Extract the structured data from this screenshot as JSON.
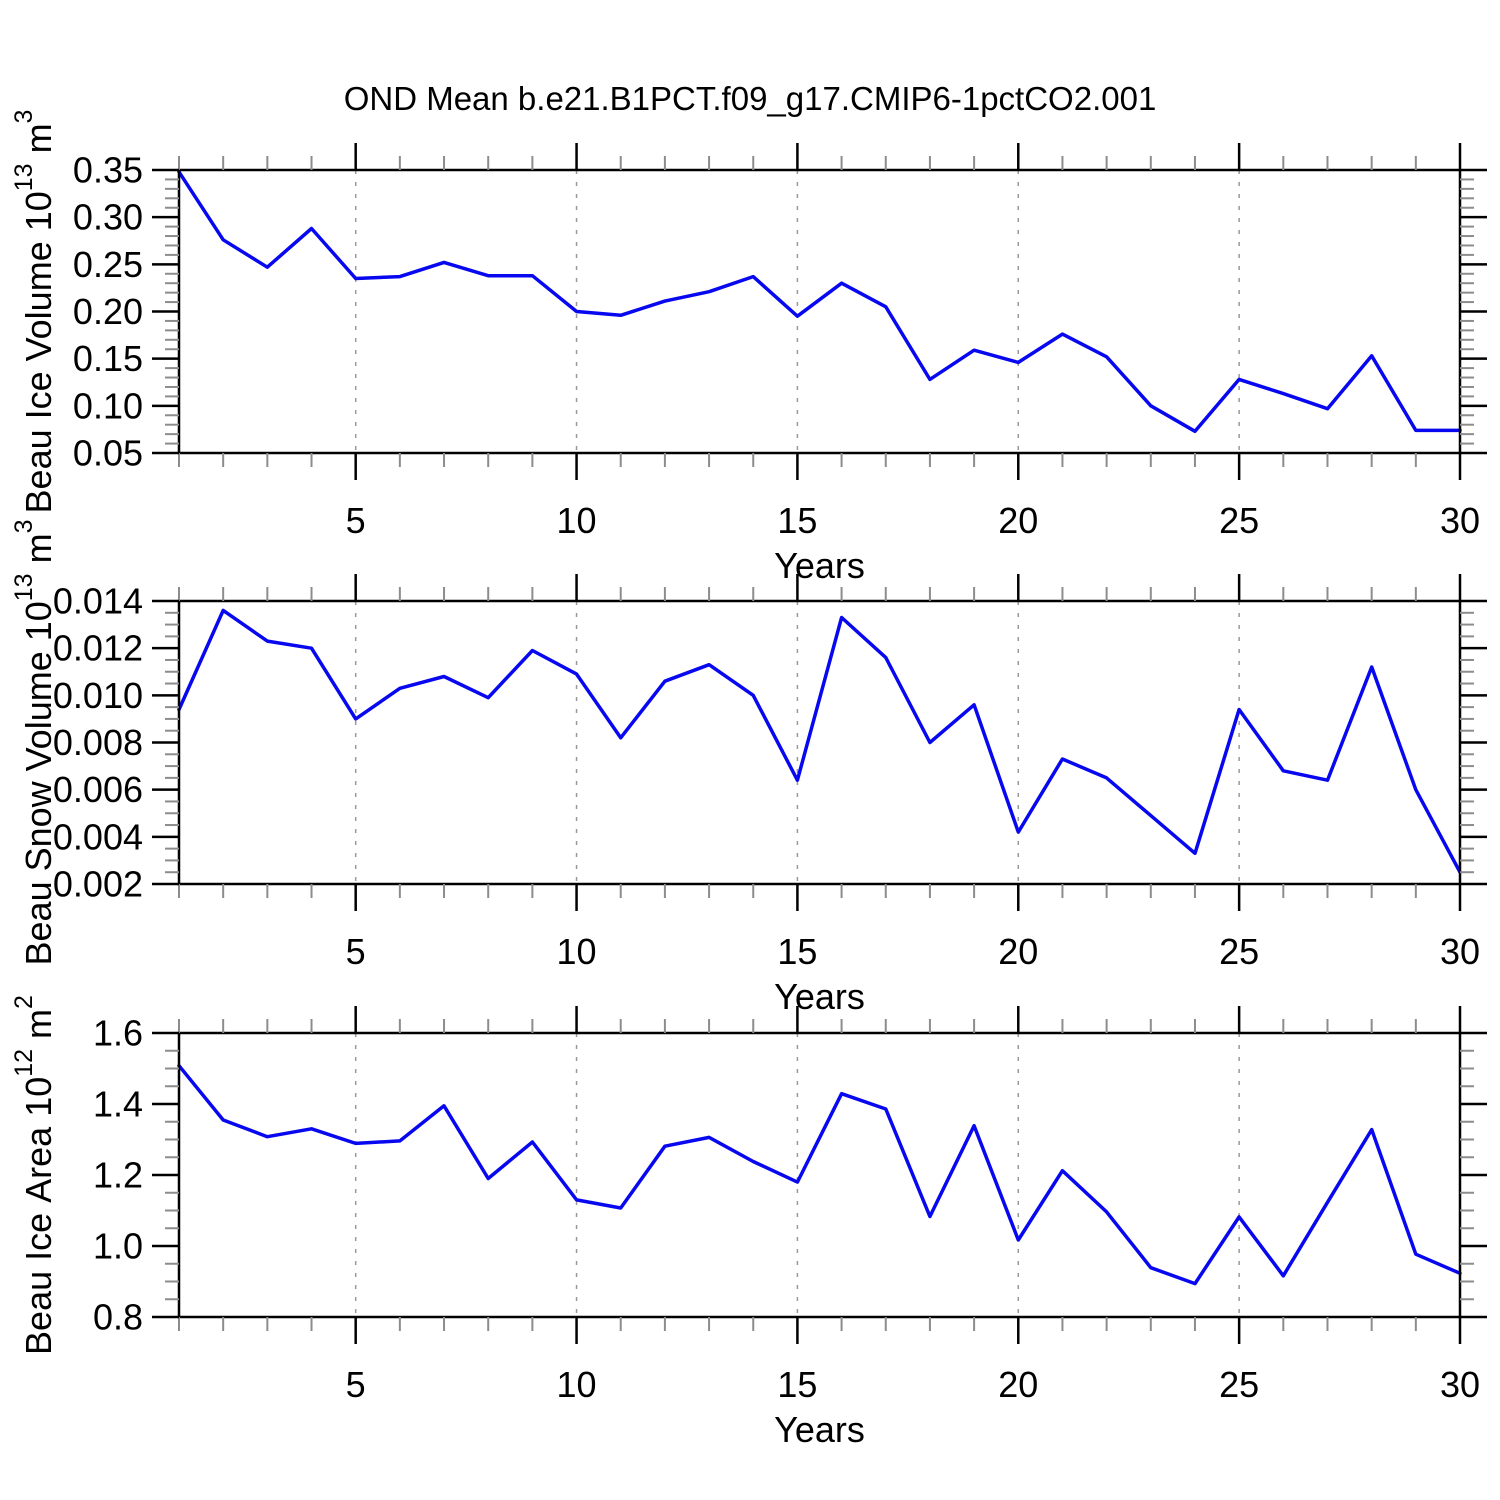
{
  "title": "OND Mean b.e21.B1PCT.f09_g17.CMIP6-1pctCO2.001",
  "line_color": "#0808f0",
  "grid_color": "#999999",
  "minor_tick_color": "#8c8c8c",
  "axis_color": "#000000",
  "x_axis": {
    "label": "Years",
    "range": [
      1,
      30
    ],
    "tick_labels": [
      "5",
      "10",
      "15",
      "20",
      "25",
      "30"
    ],
    "ticks": [
      5,
      10,
      15,
      20,
      25,
      30
    ],
    "gridlines": [
      5,
      10,
      15,
      20,
      25
    ]
  },
  "chart_data": [
    {
      "type": "line",
      "id": "ice-volume",
      "ylabel": "Beau Ice Volume 10^13 m^3",
      "ylabel_parts": [
        {
          "text": "Beau Ice Volume 10"
        },
        {
          "text": "13",
          "sup": true
        },
        {
          "text": " m"
        },
        {
          "text": "3",
          "sup": true
        }
      ],
      "ylim": [
        0.05,
        0.35
      ],
      "yticks": [
        0.05,
        0.1,
        0.15,
        0.2,
        0.25,
        0.3,
        0.35
      ],
      "ytick_labels": [
        "0.05",
        "0.10",
        "0.15",
        "0.20",
        "0.25",
        "0.30",
        "0.35"
      ],
      "minor_step": 0.01,
      "xlabel": "Years",
      "x": [
        1,
        2,
        3,
        4,
        5,
        6,
        7,
        8,
        9,
        10,
        11,
        12,
        13,
        14,
        15,
        16,
        17,
        18,
        19,
        20,
        21,
        22,
        23,
        24,
        25,
        26,
        27,
        28,
        29,
        30
      ],
      "values": [
        0.348,
        0.276,
        0.247,
        0.288,
        0.235,
        0.237,
        0.252,
        0.238,
        0.238,
        0.2,
        0.196,
        0.211,
        0.221,
        0.237,
        0.195,
        0.23,
        0.205,
        0.128,
        0.159,
        0.146,
        0.176,
        0.152,
        0.1,
        0.073,
        0.128,
        0.113,
        0.097,
        0.153,
        0.074,
        0.074
      ]
    },
    {
      "type": "line",
      "id": "snow-volume",
      "ylabel": "Beau Snow Volume 10^13 m^3",
      "ylabel_parts": [
        {
          "text": "Beau Snow Volume 10"
        },
        {
          "text": "13",
          "sup": true
        },
        {
          "text": " m"
        },
        {
          "text": "3",
          "sup": true
        }
      ],
      "ylim": [
        0.002,
        0.014
      ],
      "yticks": [
        0.002,
        0.004,
        0.006,
        0.008,
        0.01,
        0.012,
        0.014
      ],
      "ytick_labels": [
        "0.002",
        "0.004",
        "0.006",
        "0.008",
        "0.010",
        "0.012",
        "0.014"
      ],
      "minor_step": 0.0005,
      "xlabel": "Years",
      "x": [
        1,
        2,
        3,
        4,
        5,
        6,
        7,
        8,
        9,
        10,
        11,
        12,
        13,
        14,
        15,
        16,
        17,
        18,
        19,
        20,
        21,
        22,
        23,
        24,
        25,
        26,
        27,
        28,
        29,
        30
      ],
      "values": [
        0.0094,
        0.0136,
        0.0123,
        0.012,
        0.009,
        0.0103,
        0.0108,
        0.0099,
        0.0119,
        0.0109,
        0.0082,
        0.0106,
        0.0113,
        0.01,
        0.0064,
        0.0133,
        0.0116,
        0.008,
        0.0096,
        0.0042,
        0.0073,
        0.0065,
        0.0049,
        0.0033,
        0.0094,
        0.0068,
        0.0064,
        0.0112,
        0.006,
        0.0025
      ]
    },
    {
      "type": "line",
      "id": "ice-area",
      "ylabel": "Beau Ice Area 10^12 m^2",
      "ylabel_parts": [
        {
          "text": "Beau Ice Area 10"
        },
        {
          "text": "12",
          "sup": true
        },
        {
          "text": " m"
        },
        {
          "text": "2",
          "sup": true
        }
      ],
      "ylim": [
        0.8,
        1.6
      ],
      "yticks": [
        0.8,
        1.0,
        1.2,
        1.4,
        1.6
      ],
      "ytick_labels": [
        "0.8",
        "1.0",
        "1.2",
        "1.4",
        "1.6"
      ],
      "minor_step": 0.05,
      "xlabel": "Years",
      "x": [
        1,
        2,
        3,
        4,
        5,
        6,
        7,
        8,
        9,
        10,
        11,
        12,
        13,
        14,
        15,
        16,
        17,
        18,
        19,
        20,
        21,
        22,
        23,
        24,
        25,
        26,
        27,
        28,
        29,
        30
      ],
      "values": [
        1.508,
        1.355,
        1.308,
        1.33,
        1.289,
        1.296,
        1.395,
        1.19,
        1.293,
        1.13,
        1.107,
        1.281,
        1.306,
        1.238,
        1.18,
        1.429,
        1.386,
        1.083,
        1.339,
        1.017,
        1.212,
        1.096,
        0.939,
        0.894,
        1.082,
        0.916,
        1.123,
        1.328,
        0.977,
        0.923
      ]
    }
  ]
}
